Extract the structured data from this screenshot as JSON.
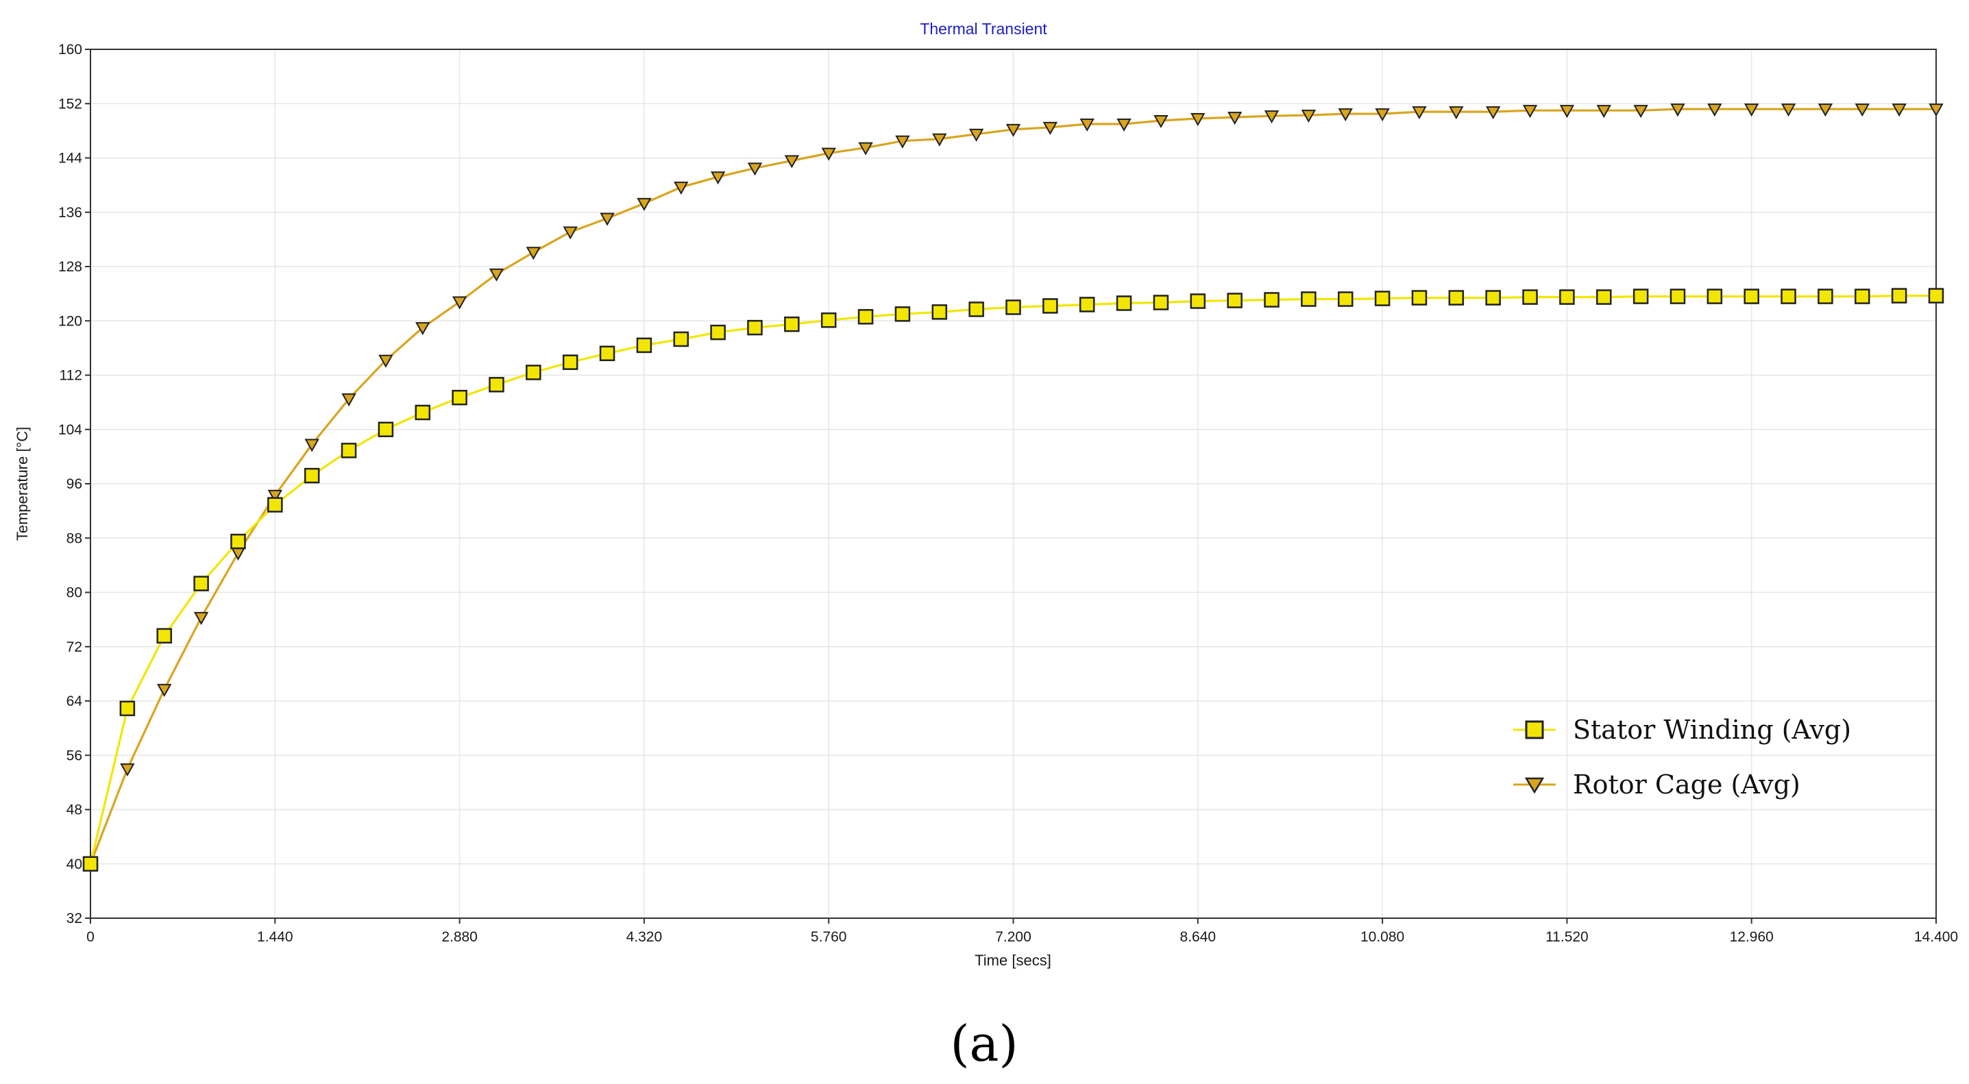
{
  "chart_data": {
    "type": "line",
    "title": "Thermal Transient",
    "xlabel": "Time [secs]",
    "ylabel": "Temperature [°C]",
    "xlim": [
      0,
      14.4
    ],
    "ylim": [
      32,
      160
    ],
    "x_ticks": [
      "0",
      "1.440",
      "2.880",
      "4.320",
      "5.760",
      "7.200",
      "8.640",
      "10.080",
      "11.520",
      "12.960",
      "14.400"
    ],
    "y_ticks": [
      "32",
      "40",
      "48",
      "56",
      "64",
      "72",
      "80",
      "88",
      "96",
      "104",
      "112",
      "120",
      "128",
      "136",
      "144",
      "152",
      "160"
    ],
    "grid": true,
    "legend_position": "lower-right",
    "series": [
      {
        "name": "Stator Winding (Avg)",
        "color": "#f2e600",
        "marker": "square",
        "x": [
          0,
          0.288,
          0.576,
          0.864,
          1.152,
          1.44,
          1.728,
          2.016,
          2.304,
          2.592,
          2.88,
          3.168,
          3.456,
          3.744,
          4.032,
          4.32,
          4.608,
          4.896,
          5.184,
          5.472,
          5.76,
          6.048,
          6.336,
          6.624,
          6.912,
          7.2,
          7.488,
          7.776,
          8.064,
          8.352,
          8.64,
          8.928,
          9.216,
          9.504,
          9.792,
          10.08,
          10.368,
          10.656,
          10.944,
          11.232,
          11.52,
          11.808,
          12.096,
          12.384,
          12.672,
          12.96,
          13.248,
          13.536,
          13.824,
          14.112,
          14.4
        ],
        "y": [
          40,
          62.9,
          73.6,
          81.3,
          87.5,
          92.9,
          97.2,
          100.9,
          104.0,
          106.5,
          108.7,
          110.6,
          112.4,
          113.9,
          115.2,
          116.4,
          117.3,
          118.3,
          119.0,
          119.5,
          120.1,
          120.6,
          121.0,
          121.3,
          121.7,
          122.0,
          122.2,
          122.4,
          122.6,
          122.7,
          122.9,
          123.0,
          123.1,
          123.2,
          123.2,
          123.3,
          123.4,
          123.4,
          123.4,
          123.5,
          123.5,
          123.5,
          123.6,
          123.6,
          123.6,
          123.6,
          123.6,
          123.6,
          123.6,
          123.7,
          123.7
        ]
      },
      {
        "name": "Rotor Cage (Avg)",
        "color": "#d9a51e",
        "marker": "triangle-down",
        "x": [
          0,
          0.288,
          0.576,
          0.864,
          1.152,
          1.44,
          1.728,
          2.016,
          2.304,
          2.592,
          2.88,
          3.168,
          3.456,
          3.744,
          4.032,
          4.32,
          4.608,
          4.896,
          5.184,
          5.472,
          5.76,
          6.048,
          6.336,
          6.624,
          6.912,
          7.2,
          7.488,
          7.776,
          8.064,
          8.352,
          8.64,
          8.928,
          9.216,
          9.504,
          9.792,
          10.08,
          10.368,
          10.656,
          10.944,
          11.232,
          11.52,
          11.808,
          12.096,
          12.384,
          12.672,
          12.96,
          13.248,
          13.536,
          13.824,
          14.112,
          14.4
        ],
        "y": [
          40,
          54.0,
          65.7,
          76.3,
          85.8,
          94.3,
          101.8,
          108.5,
          114.2,
          119.0,
          122.8,
          126.9,
          130.1,
          133.1,
          135.1,
          137.3,
          139.7,
          141.2,
          142.5,
          143.6,
          144.7,
          145.5,
          146.5,
          146.8,
          147.5,
          148.2,
          148.5,
          149.0,
          149.0,
          149.5,
          149.8,
          150.0,
          150.2,
          150.3,
          150.5,
          150.5,
          150.8,
          150.8,
          150.8,
          151.0,
          151.0,
          151.0,
          151.0,
          151.2,
          151.2,
          151.2,
          151.2,
          151.2,
          151.2,
          151.2,
          151.2
        ]
      }
    ]
  },
  "panel_label": "(a)"
}
